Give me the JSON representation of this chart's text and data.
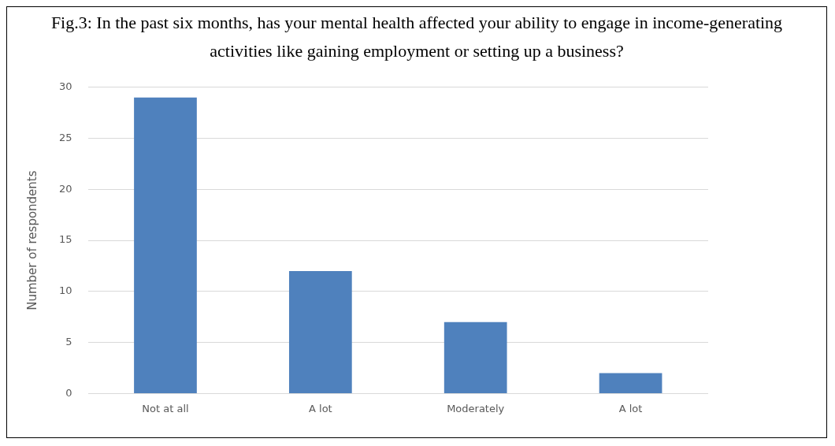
{
  "chart_data": {
    "type": "bar",
    "title": "Fig.3: In the past six months, has your mental health affected your ability to engage in income-generating activities like gaining employment or setting up a business?",
    "ylabel": "Number of respondents",
    "categories": [
      "Not at all",
      "A lot",
      "Moderately",
      "A lot"
    ],
    "values": [
      29,
      12,
      7,
      2
    ],
    "color": "#4f81bd",
    "ylim": [
      0,
      30
    ],
    "yticks": [
      0,
      5,
      10,
      15,
      20,
      25,
      30
    ],
    "grid": "y",
    "legend": false
  }
}
